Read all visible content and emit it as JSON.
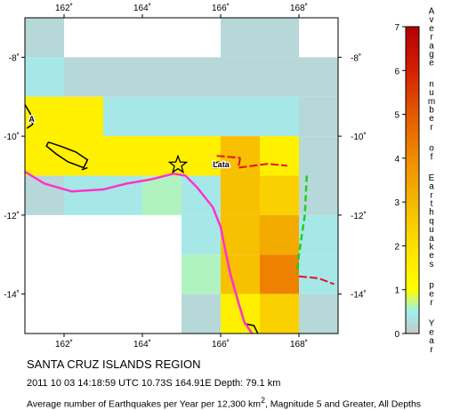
{
  "map": {
    "region": "SANTA CRUZ ISLANDS REGION",
    "lon_range": [
      161,
      169
    ],
    "lat_range": [
      -15,
      -7
    ],
    "x_ticks": [
      {
        "value": 162,
        "label": "162˚"
      },
      {
        "value": 164,
        "label": "164˚"
      },
      {
        "value": 166,
        "label": "166˚"
      },
      {
        "value": 168,
        "label": "168˚"
      }
    ],
    "y_ticks": [
      {
        "value": -8,
        "label": "-8˚"
      },
      {
        "value": -10,
        "label": "-10˚"
      },
      {
        "value": -12,
        "label": "-12˚"
      },
      {
        "value": -14,
        "label": "-14˚"
      }
    ],
    "place_labels": [
      {
        "id": "lata",
        "text": "Lata",
        "lon": 165.8,
        "lat": -10.7
      },
      {
        "id": "a",
        "text": "A",
        "lon": 161.1,
        "lat": -9.55
      }
    ],
    "epicenter": {
      "lon": 164.91,
      "lat": -10.73,
      "symbol": "star"
    }
  },
  "colorbar": {
    "label": "Average number of Earthquakes per Year",
    "min": 0,
    "max": 7,
    "ticks": [
      {
        "value": 0,
        "label": "0"
      },
      {
        "value": 1,
        "label": "1"
      },
      {
        "value": 2,
        "label": "2"
      },
      {
        "value": 3,
        "label": "3"
      },
      {
        "value": 4,
        "label": "4"
      },
      {
        "value": 5,
        "label": "5"
      },
      {
        "value": 6,
        "label": "6"
      },
      {
        "value": 7,
        "label": "7"
      }
    ],
    "stops": [
      {
        "value": 0,
        "color": "#c8c8c8"
      },
      {
        "value": 0.5,
        "color": "#9ef0f0"
      },
      {
        "value": 1,
        "color": "#ffff00"
      },
      {
        "value": 2,
        "color": "#ffe000"
      },
      {
        "value": 3,
        "color": "#f5b800"
      },
      {
        "value": 4,
        "color": "#f08c00"
      },
      {
        "value": 5,
        "color": "#e45a00"
      },
      {
        "value": 6,
        "color": "#d42000"
      },
      {
        "value": 7,
        "color": "#b40000"
      }
    ]
  },
  "chart_data": {
    "type": "heatmap",
    "cell_size_deg": 1,
    "cells": [
      {
        "lon": 161,
        "lat": -8,
        "value": 0.2
      },
      {
        "lon": 166,
        "lat": -8,
        "value": 0.2
      },
      {
        "lon": 167,
        "lat": -8,
        "value": 0.2
      },
      {
        "lon": 161,
        "lat": -9,
        "value": 0.4
      },
      {
        "lon": 162,
        "lat": -9,
        "value": 0.2
      },
      {
        "lon": 163,
        "lat": -9,
        "value": 0.2
      },
      {
        "lon": 164,
        "lat": -9,
        "value": 0.2
      },
      {
        "lon": 165,
        "lat": -9,
        "value": 0.2
      },
      {
        "lon": 166,
        "lat": -9,
        "value": 0.2
      },
      {
        "lon": 167,
        "lat": -9,
        "value": 0.2
      },
      {
        "lon": 168,
        "lat": -9,
        "value": 0.2
      },
      {
        "lon": 161,
        "lat": -10,
        "value": 1.5
      },
      {
        "lon": 162,
        "lat": -10,
        "value": 1.5
      },
      {
        "lon": 163,
        "lat": -10,
        "value": 0.4
      },
      {
        "lon": 164,
        "lat": -10,
        "value": 0.4
      },
      {
        "lon": 165,
        "lat": -10,
        "value": 0.4
      },
      {
        "lon": 166,
        "lat": -10,
        "value": 0.4
      },
      {
        "lon": 167,
        "lat": -10,
        "value": 0.4
      },
      {
        "lon": 168,
        "lat": -10,
        "value": 0.2
      },
      {
        "lon": 161,
        "lat": -11,
        "value": 1.5
      },
      {
        "lon": 162,
        "lat": -11,
        "value": 1.5
      },
      {
        "lon": 163,
        "lat": -11,
        "value": 1.5
      },
      {
        "lon": 164,
        "lat": -11,
        "value": 1.5
      },
      {
        "lon": 165,
        "lat": -11,
        "value": 1.5
      },
      {
        "lon": 166,
        "lat": -11,
        "value": 2.8
      },
      {
        "lon": 167,
        "lat": -11,
        "value": 1.5
      },
      {
        "lon": 168,
        "lat": -11,
        "value": 0.2
      },
      {
        "lon": 161,
        "lat": -12,
        "value": 0.2
      },
      {
        "lon": 162,
        "lat": -12,
        "value": 0.4
      },
      {
        "lon": 163,
        "lat": -12,
        "value": 0.4
      },
      {
        "lon": 164,
        "lat": -12,
        "value": 0.6
      },
      {
        "lon": 165,
        "lat": -12,
        "value": 0.4
      },
      {
        "lon": 166,
        "lat": -12,
        "value": 2.8
      },
      {
        "lon": 167,
        "lat": -12,
        "value": 2.4
      },
      {
        "lon": 168,
        "lat": -12,
        "value": 0.2
      },
      {
        "lon": 165,
        "lat": -13,
        "value": 0.4
      },
      {
        "lon": 166,
        "lat": -13,
        "value": 2.8
      },
      {
        "lon": 167,
        "lat": -13,
        "value": 3.3
      },
      {
        "lon": 168,
        "lat": -13,
        "value": 0.4
      },
      {
        "lon": 165,
        "lat": -14,
        "value": 0.6
      },
      {
        "lon": 166,
        "lat": -14,
        "value": 2.8
      },
      {
        "lon": 167,
        "lat": -14,
        "value": 4.2
      },
      {
        "lon": 168,
        "lat": -14,
        "value": 0.4
      },
      {
        "lon": 165,
        "lat": -15,
        "value": 0.2
      },
      {
        "lon": 166,
        "lat": -15,
        "value": 1.5
      },
      {
        "lon": 167,
        "lat": -15,
        "value": 2.4
      },
      {
        "lon": 168,
        "lat": -15,
        "value": 0.2
      }
    ],
    "plate_boundary": [
      [
        161.0,
        -10.9
      ],
      [
        161.5,
        -11.2
      ],
      [
        162.2,
        -11.4
      ],
      [
        163.0,
        -11.35
      ],
      [
        163.6,
        -11.2
      ],
      [
        164.2,
        -11.1
      ],
      [
        164.8,
        -10.95
      ],
      [
        165.1,
        -11.0
      ],
      [
        165.4,
        -11.3
      ],
      [
        165.8,
        -11.8
      ],
      [
        166.0,
        -12.3
      ],
      [
        166.1,
        -12.8
      ],
      [
        166.25,
        -13.5
      ],
      [
        166.45,
        -14.2
      ],
      [
        166.6,
        -14.7
      ],
      [
        166.8,
        -15.0
      ]
    ],
    "trench_red": [
      [
        [
          165.9,
          -10.5
        ],
        [
          166.5,
          -10.55
        ]
      ],
      [
        [
          166.5,
          -10.55
        ],
        [
          166.45,
          -10.8
        ],
        [
          167.2,
          -10.7
        ],
        [
          167.7,
          -10.75
        ]
      ],
      [
        [
          168.0,
          -13.55
        ],
        [
          168.5,
          -13.6
        ],
        [
          168.9,
          -13.75
        ]
      ]
    ],
    "trench_green": [
      [
        168.2,
        -11.0
      ],
      [
        168.15,
        -12.0
      ],
      [
        168.0,
        -13.0
      ],
      [
        167.95,
        -13.5
      ]
    ],
    "coastlines": [
      [
        [
          161.0,
          -9.2
        ],
        [
          161.15,
          -9.45
        ],
        [
          161.2,
          -9.7
        ],
        [
          161.05,
          -9.8
        ]
      ],
      [
        [
          161.6,
          -10.15
        ],
        [
          161.9,
          -10.25
        ],
        [
          162.3,
          -10.4
        ],
        [
          162.6,
          -10.6
        ],
        [
          162.5,
          -10.8
        ],
        [
          162.1,
          -10.65
        ],
        [
          161.8,
          -10.45
        ],
        [
          161.55,
          -10.25
        ],
        [
          161.6,
          -10.15
        ]
      ],
      [
        [
          162.6,
          -10.8
        ],
        [
          162.45,
          -10.85
        ]
      ],
      [
        [
          165.8,
          -10.7
        ],
        [
          165.95,
          -10.65
        ],
        [
          165.95,
          -10.8
        ],
        [
          165.8,
          -10.8
        ],
        [
          165.8,
          -10.7
        ]
      ],
      [
        [
          166.6,
          -14.75
        ],
        [
          166.85,
          -14.8
        ],
        [
          166.95,
          -15.0
        ]
      ]
    ]
  },
  "captions": {
    "title": "SANTA CRUZ ISLANDS REGION",
    "event": "2011 10 03 14:18:59 UTC 10.73S 164.91E Depth: 79.1 km",
    "average_prefix": "Average number of Earthquakes per Year per 12,300 km",
    "average_sup": "2",
    "average_suffix": ", Magnitude 5 and Greater, All Depths"
  }
}
